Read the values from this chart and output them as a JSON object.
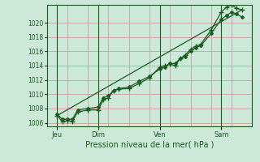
{
  "title": "",
  "xlabel": "Pression niveau de la mer( hPa )",
  "ylabel": "",
  "bg_color": "#cce8d8",
  "plot_bg_color": "#cce8d8",
  "grid_color_v": "#c8a0a0",
  "grid_color_h": "#c8a0a0",
  "line_color": "#1a5c20",
  "marker_color": "#1a5c20",
  "ylim": [
    1005.5,
    1022.5
  ],
  "yticks": [
    1006,
    1008,
    1010,
    1012,
    1014,
    1016,
    1018,
    1020
  ],
  "day_labels": [
    "Jeu",
    "Dim",
    "Ven",
    "Sam"
  ],
  "day_positions": [
    0,
    48,
    120,
    192
  ],
  "xlim": [
    -12,
    228
  ],
  "line1_x": [
    0,
    6,
    12,
    18,
    24,
    36,
    48,
    54,
    60,
    66,
    72,
    84,
    96,
    108,
    120,
    126,
    132,
    138,
    144,
    150,
    156,
    162,
    168,
    180,
    192,
    198,
    204,
    210,
    216
  ],
  "line1_y": [
    1007.0,
    1006.2,
    1006.3,
    1006.2,
    1007.5,
    1007.8,
    1007.8,
    1009.2,
    1009.5,
    1010.5,
    1010.7,
    1010.8,
    1011.5,
    1012.3,
    1013.8,
    1014.0,
    1014.2,
    1014.0,
    1015.0,
    1015.5,
    1016.3,
    1016.7,
    1017.0,
    1019.0,
    1021.5,
    1022.2,
    1022.5,
    1022.0,
    1021.8
  ],
  "line2_x": [
    0,
    6,
    12,
    18,
    24,
    36,
    48,
    54,
    60,
    66,
    72,
    84,
    96,
    108,
    120,
    126,
    132,
    138,
    144,
    150,
    156,
    162,
    168,
    180,
    192,
    198,
    204,
    210,
    216
  ],
  "line2_y": [
    1007.2,
    1006.5,
    1006.5,
    1006.5,
    1007.8,
    1008.0,
    1008.2,
    1009.5,
    1009.8,
    1010.5,
    1010.8,
    1011.0,
    1011.8,
    1012.5,
    1013.5,
    1013.8,
    1014.3,
    1014.3,
    1015.0,
    1015.3,
    1016.0,
    1016.5,
    1016.8,
    1018.5,
    1020.5,
    1021.0,
    1021.5,
    1021.2,
    1020.8
  ],
  "trend_x": [
    0,
    216
  ],
  "trend_y": [
    1007.0,
    1021.8
  ]
}
